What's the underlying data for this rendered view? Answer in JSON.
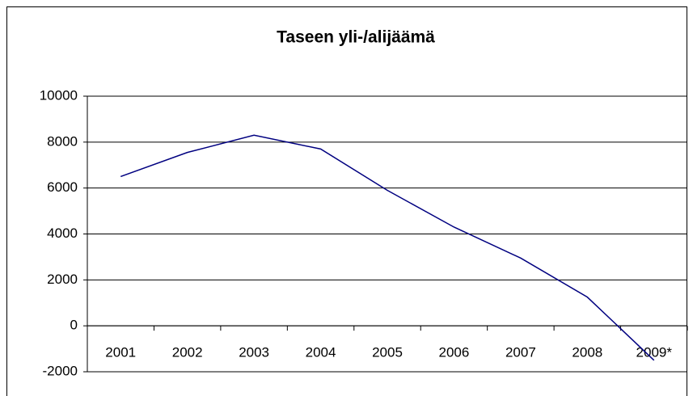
{
  "chart_data": {
    "type": "line",
    "title": "Taseen yli-/alijäämä",
    "categories": [
      "2001",
      "2002",
      "2003",
      "2004",
      "2005",
      "2006",
      "2007",
      "2008",
      "2009*"
    ],
    "series": [
      {
        "name": "Taseen yli-/alijäämä",
        "color": "#000080",
        "values": [
          6500,
          7550,
          8300,
          7700,
          5900,
          4300,
          2950,
          1250,
          -1500
        ]
      }
    ],
    "ylim": [
      -2000,
      10000
    ],
    "yticks": [
      -2000,
      0,
      2000,
      4000,
      6000,
      8000,
      10000
    ],
    "grid": true
  }
}
